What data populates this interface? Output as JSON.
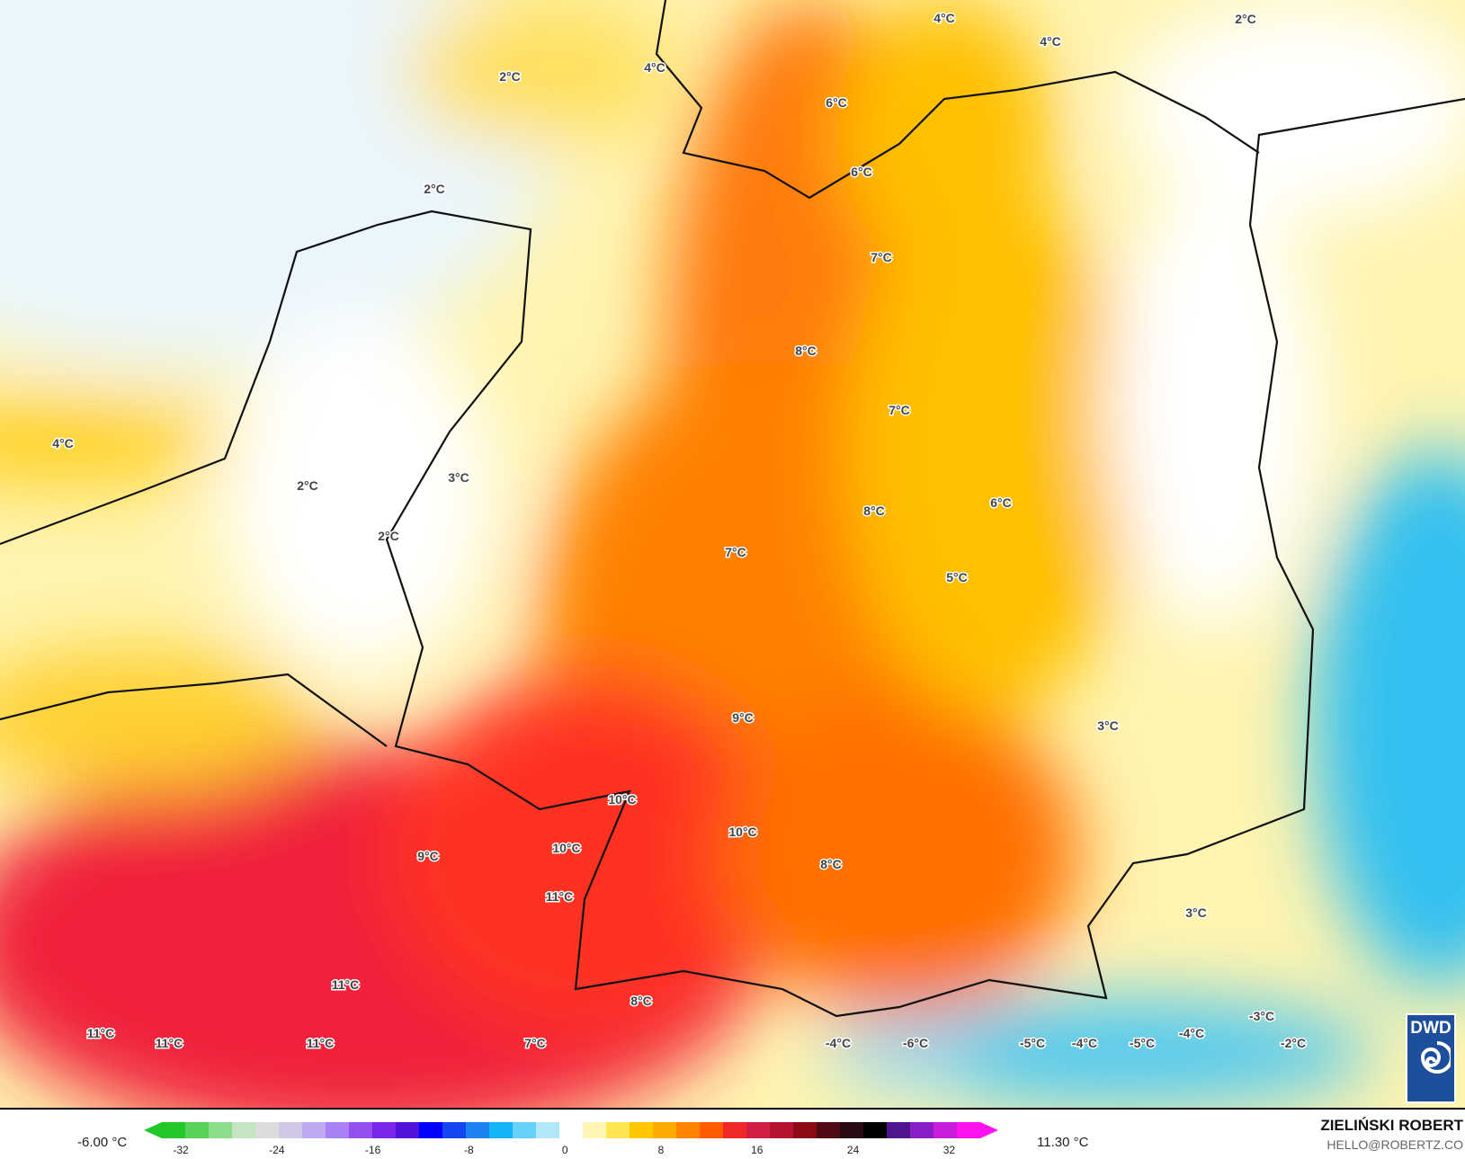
{
  "map": {
    "labels": [
      "2°C",
      "4°C",
      "4°C",
      "4°C",
      "2°C",
      "6°C",
      "6°C",
      "2°C",
      "7°C",
      "8°C",
      "7°C",
      "4°C",
      "3°C",
      "2°C",
      "6°C",
      "8°C",
      "2°C",
      "7°C",
      "5°C",
      "9°C",
      "3°C",
      "10°C",
      "10°C",
      "10°C",
      "9°C",
      "8°C",
      "11°C",
      "3°C",
      "11°C",
      "8°C",
      "-3°C",
      "-4°C",
      "11°C",
      "11°C",
      "11°C",
      "7°C",
      "-4°C",
      "-6°C",
      "-5°C",
      "-4°C",
      "-5°C",
      "-2°C"
    ]
  },
  "legend": {
    "min_value": "-6.00 °C",
    "max_value": "11.30 °C",
    "ticks": [
      "-32",
      "-24",
      "-16",
      "-8",
      "0",
      "8",
      "16",
      "24",
      "32"
    ],
    "colors": [
      "#22c82a",
      "#5ad25a",
      "#8cdc8c",
      "#c4e4c4",
      "#dcdcdc",
      "#d2c8e6",
      "#beaaf0",
      "#a882f5",
      "#9650f0",
      "#7828e6",
      "#5014dc",
      "#0000ff",
      "#1446f0",
      "#1e82f0",
      "#14b4f5",
      "#64d2fa",
      "#b4e6fa",
      "#ffffff",
      "#fff5b4",
      "#ffe650",
      "#ffc800",
      "#ffaa00",
      "#ff8200",
      "#ff5a00",
      "#f02828",
      "#d21e46",
      "#b41432",
      "#8c0a14",
      "#500a14",
      "#280a14",
      "#000000",
      "#50148c",
      "#8c1ec8",
      "#c81edc",
      "#ff14f0"
    ]
  },
  "branding": {
    "author": "ZIELIŃSKI ROBERT",
    "email": "HELLO@ROBERTZ.CO",
    "logo_text": "DWD"
  }
}
